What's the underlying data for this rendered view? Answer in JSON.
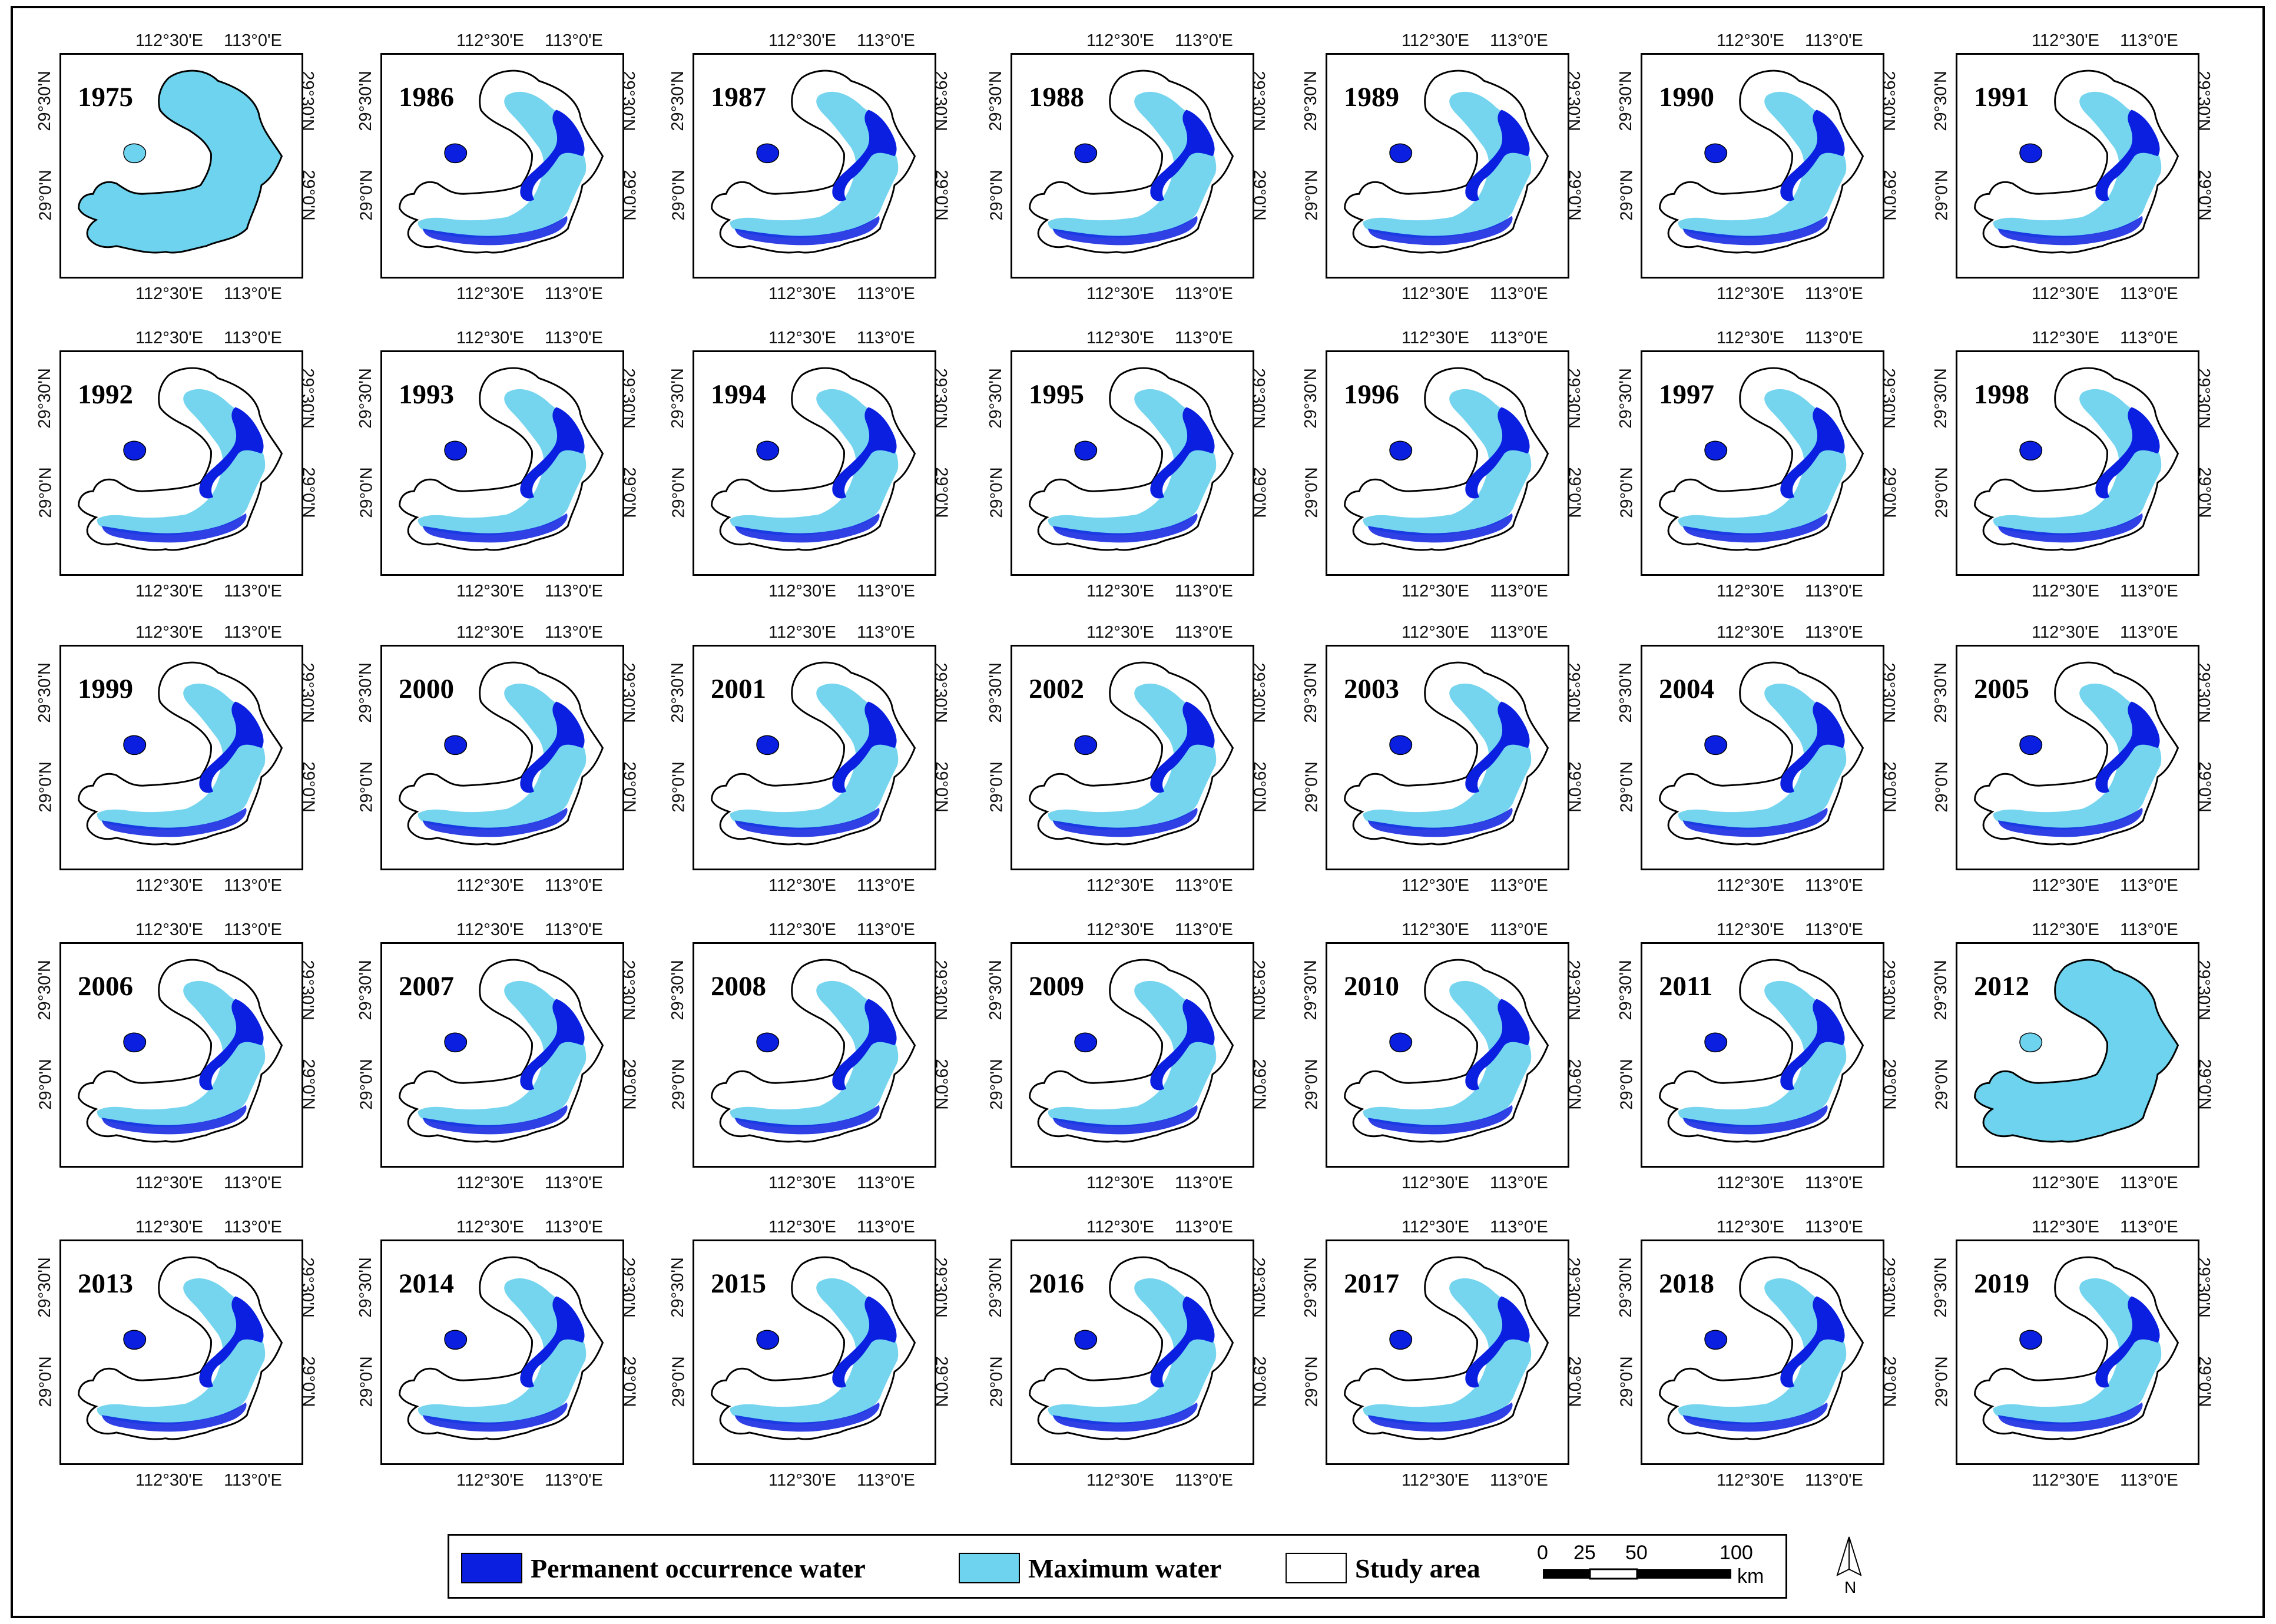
{
  "years": [
    "1975",
    "1986",
    "1987",
    "1988",
    "1989",
    "1990",
    "1991",
    "1992",
    "1993",
    "1994",
    "1995",
    "1996",
    "1997",
    "1998",
    "1999",
    "2000",
    "2001",
    "2002",
    "2003",
    "2004",
    "2005",
    "2006",
    "2007",
    "2008",
    "2009",
    "2010",
    "2011",
    "2012",
    "2013",
    "2014",
    "2015",
    "2016",
    "2017",
    "2018",
    "2019"
  ],
  "axis_labels": {
    "lon_left": "112°30'E",
    "lon_right": "113°0'E",
    "lat_top": "29°30'N",
    "lat_bottom": "29°0'N"
  },
  "legend": {
    "permanent": "Permanent occurrence water",
    "maximum": "Maximum water",
    "study": "Study area"
  },
  "scale_bar": {
    "ticks": [
      "0",
      "25",
      "50",
      "100"
    ],
    "unit": "km"
  },
  "north_label": "N",
  "colors": {
    "permanent": "#0a1fe0",
    "maximum": "#6ed3ee",
    "study_fill": "#ffffff",
    "outline": "#000000"
  },
  "icons": {
    "north_arrow": "north-arrow-icon"
  }
}
